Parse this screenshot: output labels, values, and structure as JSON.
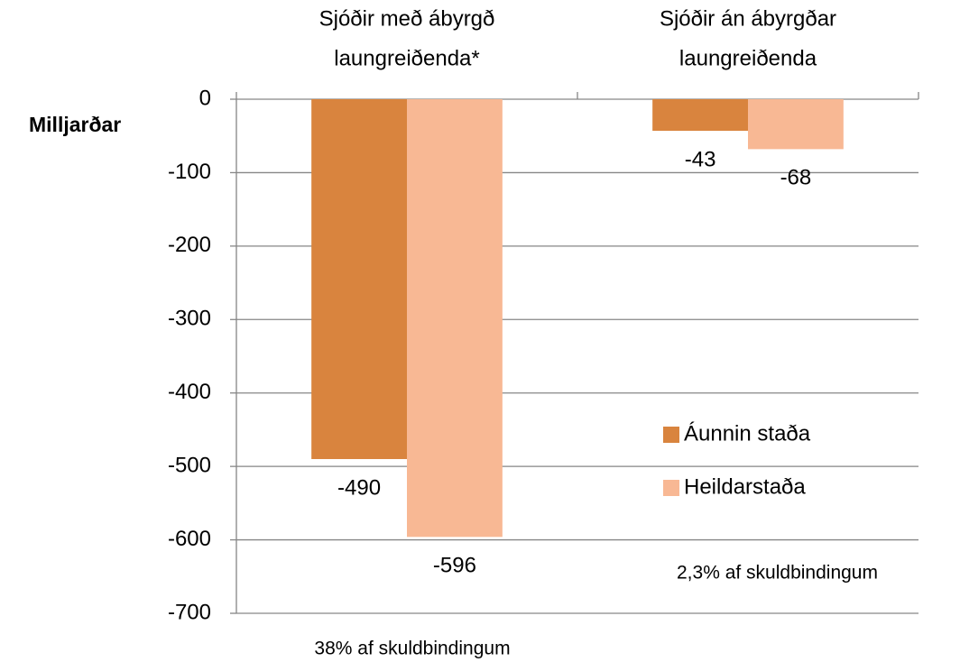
{
  "chart_data": {
    "type": "bar",
    "categories": [
      [
        "Sjóðir með ábyrgð",
        "laungreiðenda*"
      ],
      [
        "Sjóðir án ábyrgðar",
        "laungreiðenda"
      ]
    ],
    "series": [
      {
        "name": "Áunnin staða",
        "color": "#d9843e",
        "values": [
          -490,
          -43
        ]
      },
      {
        "name": "Heildarstaða",
        "color": "#f8b894",
        "values": [
          -596,
          -68
        ]
      }
    ],
    "y_label": "Milljarðar",
    "ylim": [
      -700,
      0
    ],
    "yticks": [
      0,
      -100,
      -200,
      -300,
      -400,
      -500,
      -600,
      -700
    ],
    "grid": true,
    "legend": "right",
    "annotations": [
      "38% af skuldbindingum",
      "2,3% af skuldbindingum"
    ]
  }
}
